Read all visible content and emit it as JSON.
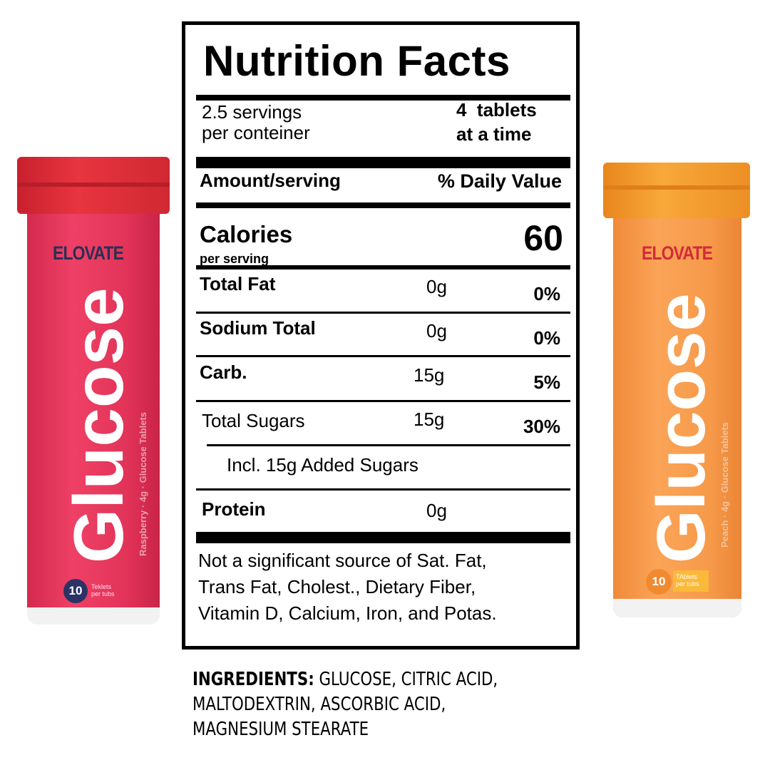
{
  "products": [
    {
      "brand": "ELOVATE",
      "name": "Glucose",
      "subtitle": "Raspberry · 4g · Glucose Tablets",
      "count": "10",
      "count_label": [
        "Teklets",
        "per tubs"
      ],
      "color": "#e8325a",
      "cap_color": "#e0303a",
      "brand_color": "#2b2f55",
      "badge_color": "#2b3366"
    },
    {
      "brand": "ELOVATE",
      "name": "Glucose",
      "subtitle": "Peach · 4g · Glucose Tablets",
      "count": "10",
      "count_label": [
        "TAblets",
        "per tubs"
      ],
      "color": "#f59a44",
      "cap_color": "#f39a2a",
      "brand_color": "#d32a3a",
      "badge_color": "#f08a30"
    }
  ],
  "label": {
    "title": "Nutrition Facts",
    "servings_line1": "2.5 servings",
    "servings_line2": "per conteiner",
    "serving_size_line1": "4  tablets",
    "serving_size_line2": "at a time",
    "amount_header": "Amount/serving",
    "dv_header": "% Daily Value",
    "calories_label": "Calories",
    "calories_sub": "per serving",
    "calories_value": "60",
    "rows": [
      {
        "name": "Total Fat",
        "amount": "0g",
        "dv": "0%"
      },
      {
        "name": "Sodium Total",
        "amount": "0g",
        "dv": "0%"
      },
      {
        "name": "Carb.",
        "amount": "15g",
        "dv": "5%"
      },
      {
        "name": "Total Sugars",
        "amount": "15g",
        "dv": "30%"
      },
      {
        "name": "Incl. 15g Added Sugars"
      },
      {
        "name": "Protein",
        "amount": "0g"
      }
    ],
    "footnote": [
      "Not a significant source of Sat. Fat,",
      "Trans Fat, Cholest., Dietary Fiber,",
      "Vitamin D, Calcium, Iron, and Potas."
    ]
  },
  "ingredients": {
    "heading": "INGREDIENTS:",
    "lines": [
      " GLUCOSE, CITRIC ACID,",
      "MALTODEXTRIN, ASCORBIC ACID,",
      "MAGNESIUM STEARATE"
    ]
  }
}
